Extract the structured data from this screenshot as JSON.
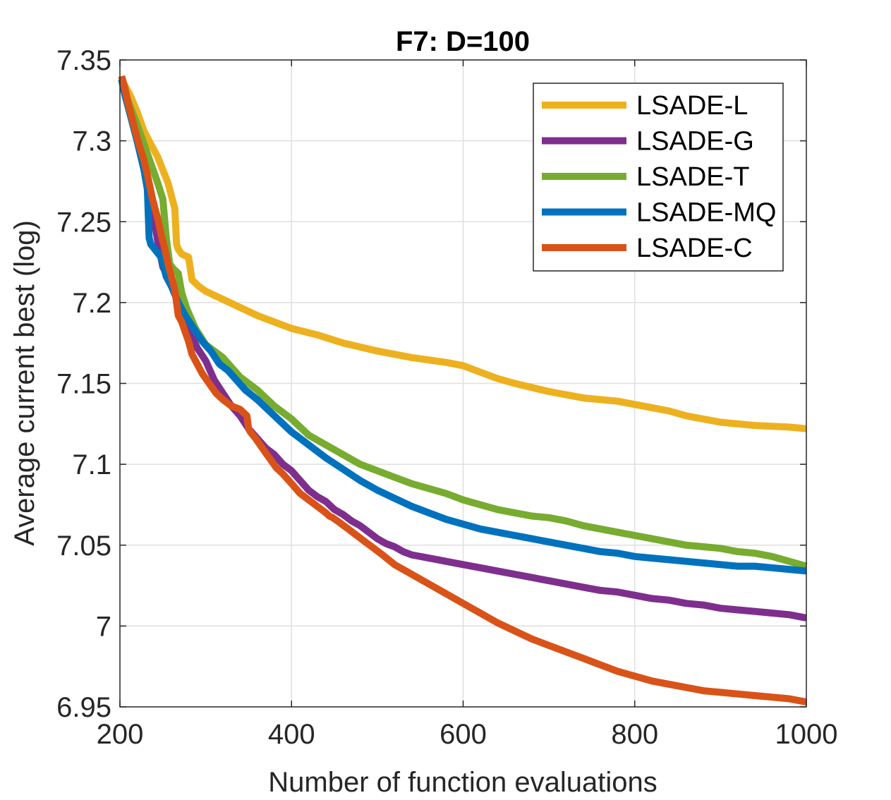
{
  "chart_data": {
    "type": "line",
    "title": "F7: D=100",
    "xlabel": "Number of function evaluations",
    "ylabel": "Average current best (log)",
    "xlim": [
      200,
      1000
    ],
    "ylim": [
      6.95,
      7.35
    ],
    "xticks": [
      200,
      400,
      600,
      800,
      1000
    ],
    "xtick_labels": [
      "200",
      "400",
      "600",
      "800",
      "1000"
    ],
    "yticks": [
      6.95,
      7.0,
      7.05,
      7.1,
      7.15,
      7.2,
      7.25,
      7.3,
      7.35
    ],
    "ytick_labels": [
      "6.95",
      "7",
      "7.05",
      "7.1",
      "7.15",
      "7.2",
      "7.25",
      "7.3",
      "7.35"
    ],
    "grid": true,
    "legend_position": "top-right",
    "series": [
      {
        "name": "LSADE-L",
        "color": "#EDB120",
        "x": [
          202,
          206,
          212,
          220,
          228,
          236,
          244,
          250,
          256,
          260,
          264,
          266,
          268,
          272,
          280,
          284,
          292,
          300,
          320,
          340,
          360,
          380,
          400,
          430,
          460,
          500,
          540,
          580,
          600,
          620,
          640,
          660,
          700,
          740,
          780,
          800,
          820,
          840,
          860,
          900,
          940,
          980,
          1000
        ],
        "values": [
          7.338,
          7.334,
          7.328,
          7.318,
          7.306,
          7.298,
          7.29,
          7.282,
          7.274,
          7.266,
          7.258,
          7.236,
          7.233,
          7.23,
          7.228,
          7.214,
          7.21,
          7.207,
          7.202,
          7.197,
          7.192,
          7.188,
          7.184,
          7.18,
          7.175,
          7.17,
          7.166,
          7.163,
          7.161,
          7.157,
          7.153,
          7.15,
          7.145,
          7.141,
          7.139,
          7.137,
          7.135,
          7.133,
          7.13,
          7.126,
          7.124,
          7.123,
          7.122
        ]
      },
      {
        "name": "LSADE-G",
        "color": "#7E2F8E",
        "x": [
          202,
          206,
          212,
          220,
          226,
          232,
          238,
          244,
          250,
          258,
          266,
          272,
          280,
          290,
          300,
          310,
          320,
          330,
          340,
          350,
          360,
          370,
          380,
          390,
          400,
          410,
          420,
          430,
          440,
          450,
          460,
          470,
          480,
          490,
          500,
          510,
          520,
          530,
          540,
          560,
          580,
          600,
          620,
          640,
          660,
          680,
          700,
          720,
          740,
          760,
          780,
          800,
          820,
          840,
          860,
          880,
          900,
          920,
          940,
          960,
          980,
          1000
        ],
        "values": [
          7.338,
          7.328,
          7.318,
          7.306,
          7.292,
          7.276,
          7.258,
          7.238,
          7.222,
          7.214,
          7.208,
          7.196,
          7.184,
          7.172,
          7.164,
          7.152,
          7.144,
          7.136,
          7.13,
          7.122,
          7.116,
          7.11,
          7.106,
          7.1,
          7.096,
          7.09,
          7.084,
          7.08,
          7.077,
          7.072,
          7.069,
          7.065,
          7.062,
          7.058,
          7.054,
          7.051,
          7.049,
          7.046,
          7.044,
          7.042,
          7.04,
          7.038,
          7.036,
          7.034,
          7.032,
          7.03,
          7.028,
          7.026,
          7.024,
          7.022,
          7.021,
          7.019,
          7.017,
          7.016,
          7.014,
          7.013,
          7.011,
          7.01,
          7.009,
          7.008,
          7.007,
          7.005
        ]
      },
      {
        "name": "LSADE-T",
        "color": "#77AC30",
        "x": [
          202,
          206,
          212,
          220,
          228,
          236,
          244,
          250,
          254,
          258,
          262,
          268,
          272,
          278,
          288,
          300,
          320,
          340,
          360,
          380,
          400,
          420,
          440,
          460,
          480,
          500,
          520,
          540,
          560,
          580,
          600,
          620,
          640,
          660,
          680,
          700,
          720,
          740,
          760,
          780,
          800,
          820,
          840,
          860,
          880,
          900,
          920,
          940,
          960,
          980,
          1000
        ],
        "values": [
          7.338,
          7.33,
          7.321,
          7.31,
          7.298,
          7.286,
          7.274,
          7.264,
          7.24,
          7.224,
          7.221,
          7.218,
          7.206,
          7.196,
          7.184,
          7.174,
          7.166,
          7.154,
          7.146,
          7.136,
          7.128,
          7.118,
          7.112,
          7.106,
          7.1,
          7.096,
          7.092,
          7.088,
          7.085,
          7.082,
          7.078,
          7.075,
          7.072,
          7.07,
          7.068,
          7.067,
          7.065,
          7.062,
          7.06,
          7.058,
          7.056,
          7.054,
          7.052,
          7.05,
          7.049,
          7.048,
          7.046,
          7.045,
          7.043,
          7.04,
          7.037
        ]
      },
      {
        "name": "LSADE-MQ",
        "color": "#0072BD",
        "x": [
          202,
          206,
          212,
          220,
          228,
          232,
          234,
          236,
          242,
          248,
          254,
          260,
          268,
          276,
          286,
          296,
          306,
          316,
          326,
          336,
          346,
          360,
          376,
          390,
          400,
          420,
          440,
          460,
          480,
          500,
          520,
          540,
          560,
          580,
          600,
          620,
          640,
          660,
          680,
          700,
          720,
          740,
          760,
          780,
          800,
          820,
          840,
          860,
          880,
          900,
          920,
          940,
          960,
          980,
          1000
        ],
        "values": [
          7.338,
          7.328,
          7.316,
          7.3,
          7.282,
          7.27,
          7.24,
          7.236,
          7.232,
          7.228,
          7.216,
          7.21,
          7.2,
          7.192,
          7.184,
          7.176,
          7.17,
          7.162,
          7.158,
          7.152,
          7.146,
          7.14,
          7.132,
          7.125,
          7.12,
          7.112,
          7.104,
          7.097,
          7.09,
          7.084,
          7.079,
          7.074,
          7.07,
          7.066,
          7.063,
          7.06,
          7.058,
          7.056,
          7.054,
          7.052,
          7.05,
          7.048,
          7.046,
          7.045,
          7.043,
          7.042,
          7.041,
          7.04,
          7.039,
          7.038,
          7.037,
          7.037,
          7.036,
          7.035,
          7.034
        ]
      },
      {
        "name": "LSADE-C",
        "color": "#D95319",
        "x": [
          202,
          206,
          210,
          216,
          222,
          228,
          234,
          238,
          244,
          248,
          252,
          256,
          260,
          264,
          268,
          272,
          276,
          280,
          284,
          290,
          296,
          304,
          312,
          320,
          330,
          340,
          348,
          350,
          352,
          358,
          366,
          374,
          382,
          390,
          400,
          410,
          420,
          430,
          440,
          444,
          448,
          456,
          466,
          476,
          486,
          496,
          506,
          520,
          540,
          560,
          580,
          600,
          620,
          640,
          660,
          680,
          700,
          720,
          740,
          760,
          780,
          800,
          820,
          840,
          860,
          880,
          900,
          920,
          940,
          960,
          980,
          1000
        ],
        "values": [
          7.34,
          7.332,
          7.322,
          7.31,
          7.298,
          7.288,
          7.274,
          7.264,
          7.252,
          7.242,
          7.234,
          7.224,
          7.216,
          7.208,
          7.192,
          7.188,
          7.182,
          7.176,
          7.168,
          7.162,
          7.156,
          7.15,
          7.144,
          7.14,
          7.136,
          7.134,
          7.13,
          7.122,
          7.12,
          7.116,
          7.11,
          7.104,
          7.098,
          7.094,
          7.088,
          7.082,
          7.078,
          7.074,
          7.07,
          7.068,
          7.067,
          7.064,
          7.06,
          7.056,
          7.052,
          7.048,
          7.044,
          7.038,
          7.032,
          7.026,
          7.02,
          7.014,
          7.008,
          7.002,
          6.997,
          6.992,
          6.988,
          6.984,
          6.98,
          6.976,
          6.972,
          6.969,
          6.966,
          6.964,
          6.962,
          6.96,
          6.959,
          6.958,
          6.957,
          6.956,
          6.955,
          6.953
        ]
      }
    ]
  }
}
